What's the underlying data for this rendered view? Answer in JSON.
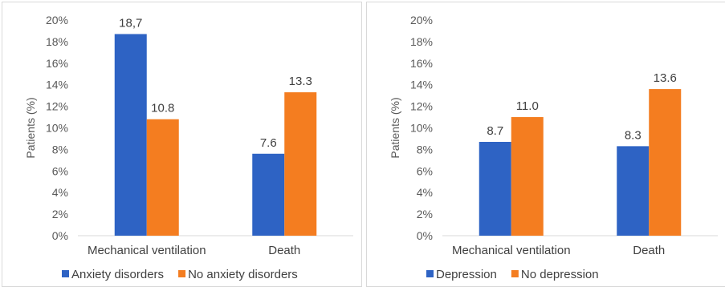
{
  "colors": {
    "series1": "#2e63c4",
    "series2": "#f47d20",
    "axis": "#d9d9d9",
    "text": "#404040"
  },
  "chart_data": [
    {
      "type": "bar",
      "categories": [
        "Mechanical ventilation",
        "Death"
      ],
      "series": [
        {
          "name": "Anxiety disorders",
          "values": [
            18.7,
            7.6
          ],
          "labels": [
            "18,7",
            "7.6"
          ]
        },
        {
          "name": "No anxiety disorders",
          "values": [
            10.8,
            13.3
          ],
          "labels": [
            "10.8",
            "13.3"
          ]
        }
      ],
      "ylabel": "Patients (%)",
      "ylim": [
        0,
        20
      ],
      "yticks": [
        "0%",
        "2%",
        "4%",
        "6%",
        "8%",
        "10%",
        "12%",
        "14%",
        "16%",
        "18%",
        "20%"
      ],
      "grid": false,
      "legend": "bottom-left"
    },
    {
      "type": "bar",
      "categories": [
        "Mechanical ventilation",
        "Death"
      ],
      "series": [
        {
          "name": "Depression",
          "values": [
            8.7,
            8.3
          ],
          "labels": [
            "8.7",
            "8.3"
          ]
        },
        {
          "name": "No depression",
          "values": [
            11.0,
            13.6
          ],
          "labels": [
            "11.0",
            "13.6"
          ]
        }
      ],
      "ylabel": "Patients (%)",
      "ylim": [
        0,
        20
      ],
      "yticks": [
        "0%",
        "2%",
        "4%",
        "6%",
        "8%",
        "10%",
        "12%",
        "14%",
        "16%",
        "18%",
        "20%"
      ],
      "grid": false,
      "legend": "bottom-left"
    }
  ]
}
